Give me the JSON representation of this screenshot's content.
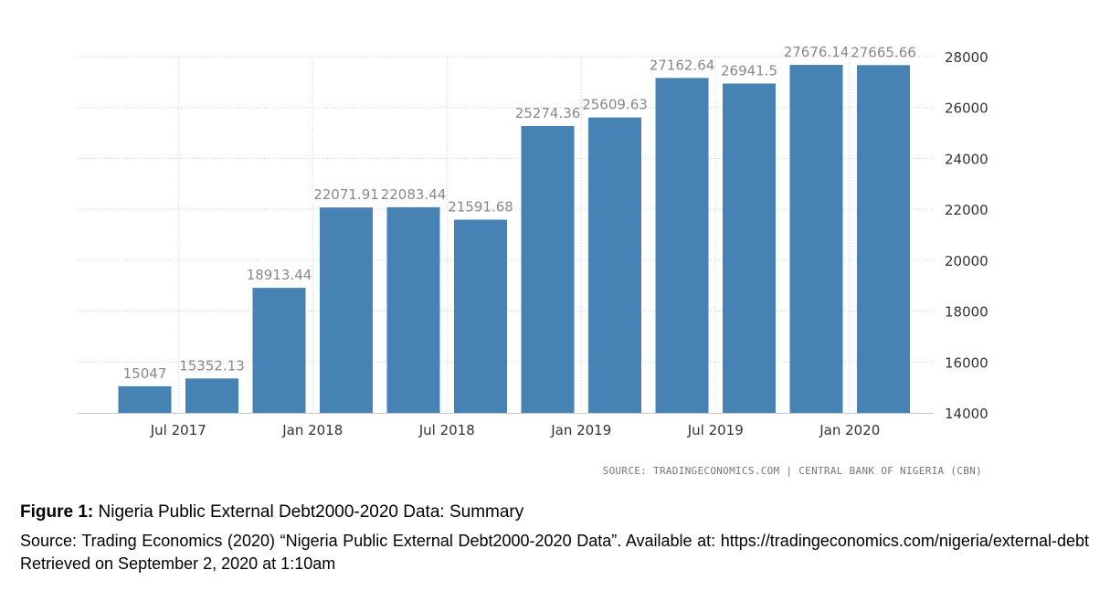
{
  "chart_data": {
    "type": "bar",
    "categories": [
      "2017-06",
      "2017-09",
      "2017-12",
      "2018-03",
      "2018-06",
      "2018-09",
      "2018-12",
      "2019-03",
      "2019-06",
      "2019-09",
      "2019-12",
      "2020-03"
    ],
    "values": [
      15047,
      15352.13,
      18913.44,
      22071.91,
      22083.44,
      21591.68,
      25274.36,
      25609.63,
      27162.64,
      26941.5,
      27676.14,
      27665.66
    ],
    "value_labels": [
      "15047",
      "15352.13",
      "18913.44",
      "22071.91",
      "22083.44",
      "21591.68",
      "25274.36",
      "25609.63",
      "27162.64",
      "26941.5",
      "27676.14",
      "27665.66"
    ],
    "x_tick_labels": [
      "Jul 2017",
      "Jan 2018",
      "Jul 2018",
      "Jan 2019",
      "Jul 2019",
      "Jan 2020"
    ],
    "x_tick_after_index": [
      0,
      2,
      4,
      6,
      8,
      10
    ],
    "y_tick_labels": [
      "28000",
      "26000",
      "24000",
      "22000",
      "20000",
      "18000",
      "16000",
      "14000"
    ],
    "ylim": [
      14000,
      28000
    ],
    "y_axis_side": "right",
    "grid": true,
    "title": "",
    "xlabel": "",
    "ylabel": "",
    "bar_color": "#4682b4"
  },
  "source_note": "SOURCE: TRADINGECONOMICS.COM | CENTRAL BANK OF NIGERIA (CBN)",
  "caption": {
    "figure_label": "Figure 1:",
    "figure_title": " Nigeria Public External Debt2000-2020 Data: Summary",
    "citation": "Source: Trading Economics (2020) “Nigeria Public External Debt2000-2020 Data”. Available at: https://tradingeconomics.com/nigeria/external-debt   Retrieved on September 2, 2020 at 1:10am"
  }
}
